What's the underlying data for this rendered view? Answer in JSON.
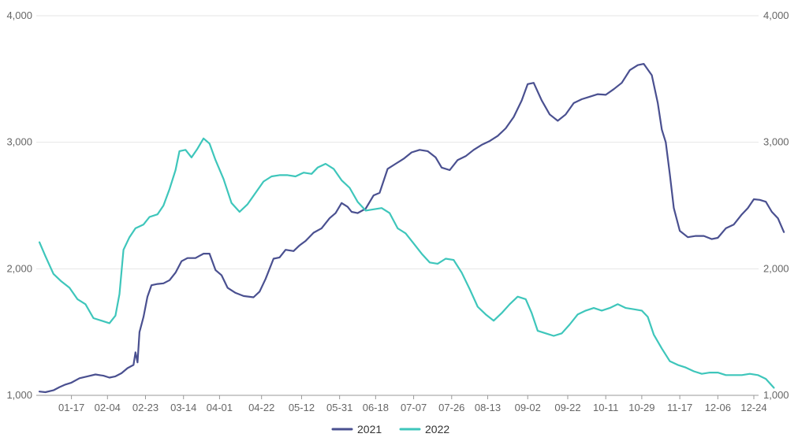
{
  "chart_data": {
    "type": "line",
    "title": "",
    "xlabel": "",
    "ylabel": "",
    "ylim": [
      1000,
      4000
    ],
    "y_ticks": [
      "1,000",
      "2,000",
      "3,000",
      "4,000"
    ],
    "y_tick_values": [
      1000,
      2000,
      3000,
      4000
    ],
    "x_ticks": [
      "01-17",
      "02-04",
      "02-23",
      "03-14",
      "04-01",
      "04-22",
      "05-12",
      "05-31",
      "06-18",
      "07-07",
      "07-26",
      "08-13",
      "09-02",
      "09-22",
      "10-11",
      "10-29",
      "11-17",
      "12-06",
      "12-24"
    ],
    "grid": "horizontal",
    "legend_position": "bottom",
    "series": [
      {
        "name": "2021",
        "color": "#4a5090",
        "points": [
          [
            "01-01",
            1030
          ],
          [
            "01-04",
            1025
          ],
          [
            "01-08",
            1040
          ],
          [
            "01-11",
            1065
          ],
          [
            "01-14",
            1085
          ],
          [
            "01-17",
            1100
          ],
          [
            "01-21",
            1135
          ],
          [
            "01-25",
            1150
          ],
          [
            "01-29",
            1165
          ],
          [
            "02-02",
            1155
          ],
          [
            "02-05",
            1140
          ],
          [
            "02-08",
            1150
          ],
          [
            "02-11",
            1175
          ],
          [
            "02-14",
            1215
          ],
          [
            "02-17",
            1240
          ],
          [
            "02-18",
            1340
          ],
          [
            "02-19",
            1260
          ],
          [
            "02-20",
            1500
          ],
          [
            "02-22",
            1620
          ],
          [
            "02-24",
            1780
          ],
          [
            "02-26",
            1870
          ],
          [
            "03-01",
            1880
          ],
          [
            "03-04",
            1885
          ],
          [
            "03-07",
            1910
          ],
          [
            "03-10",
            1970
          ],
          [
            "03-13",
            2060
          ],
          [
            "03-16",
            2085
          ],
          [
            "03-20",
            2085
          ],
          [
            "03-24",
            2120
          ],
          [
            "03-27",
            2120
          ],
          [
            "03-30",
            1990
          ],
          [
            "04-02",
            1950
          ],
          [
            "04-05",
            1850
          ],
          [
            "04-09",
            1810
          ],
          [
            "04-13",
            1785
          ],
          [
            "04-18",
            1775
          ],
          [
            "04-21",
            1820
          ],
          [
            "04-24",
            1920
          ],
          [
            "04-28",
            2080
          ],
          [
            "05-01",
            2090
          ],
          [
            "05-04",
            2150
          ],
          [
            "05-08",
            2140
          ],
          [
            "05-11",
            2185
          ],
          [
            "05-14",
            2220
          ],
          [
            "05-18",
            2285
          ],
          [
            "05-22",
            2320
          ],
          [
            "05-26",
            2400
          ],
          [
            "05-29",
            2440
          ],
          [
            "06-01",
            2520
          ],
          [
            "06-04",
            2490
          ],
          [
            "06-06",
            2450
          ],
          [
            "06-09",
            2440
          ],
          [
            "06-13",
            2475
          ],
          [
            "06-17",
            2580
          ],
          [
            "06-20",
            2600
          ],
          [
            "06-24",
            2790
          ],
          [
            "06-28",
            2830
          ],
          [
            "07-02",
            2870
          ],
          [
            "07-06",
            2920
          ],
          [
            "07-10",
            2940
          ],
          [
            "07-14",
            2930
          ],
          [
            "07-18",
            2880
          ],
          [
            "07-21",
            2800
          ],
          [
            "07-25",
            2780
          ],
          [
            "07-29",
            2860
          ],
          [
            "08-02",
            2890
          ],
          [
            "08-06",
            2940
          ],
          [
            "08-10",
            2980
          ],
          [
            "08-14",
            3010
          ],
          [
            "08-18",
            3050
          ],
          [
            "08-22",
            3110
          ],
          [
            "08-26",
            3200
          ],
          [
            "08-30",
            3330
          ],
          [
            "09-02",
            3460
          ],
          [
            "09-05",
            3470
          ],
          [
            "09-09",
            3330
          ],
          [
            "09-13",
            3220
          ],
          [
            "09-17",
            3170
          ],
          [
            "09-21",
            3220
          ],
          [
            "09-25",
            3310
          ],
          [
            "09-29",
            3340
          ],
          [
            "10-03",
            3360
          ],
          [
            "10-07",
            3380
          ],
          [
            "10-11",
            3375
          ],
          [
            "10-15",
            3420
          ],
          [
            "10-19",
            3470
          ],
          [
            "10-23",
            3570
          ],
          [
            "10-27",
            3610
          ],
          [
            "10-30",
            3620
          ],
          [
            "11-03",
            3530
          ],
          [
            "11-06",
            3310
          ],
          [
            "11-08",
            3100
          ],
          [
            "11-10",
            3000
          ],
          [
            "11-12",
            2750
          ],
          [
            "11-14",
            2480
          ],
          [
            "11-17",
            2300
          ],
          [
            "11-21",
            2250
          ],
          [
            "11-25",
            2260
          ],
          [
            "11-29",
            2260
          ],
          [
            "12-03",
            2235
          ],
          [
            "12-06",
            2245
          ],
          [
            "12-10",
            2320
          ],
          [
            "12-14",
            2350
          ],
          [
            "12-18",
            2430
          ],
          [
            "12-21",
            2480
          ],
          [
            "12-24",
            2550
          ],
          [
            "12-27",
            2545
          ],
          [
            "12-30",
            2530
          ],
          [
            "01-02",
            2450
          ],
          [
            "01-05",
            2400
          ],
          [
            "01-08",
            2290
          ]
        ]
      },
      {
        "name": "2022",
        "color": "#3ec6bb",
        "points": [
          [
            "01-01",
            2210
          ],
          [
            "01-04",
            2100
          ],
          [
            "01-08",
            1960
          ],
          [
            "01-12",
            1900
          ],
          [
            "01-16",
            1850
          ],
          [
            "01-20",
            1760
          ],
          [
            "01-24",
            1720
          ],
          [
            "01-28",
            1610
          ],
          [
            "02-01",
            1590
          ],
          [
            "02-05",
            1570
          ],
          [
            "02-08",
            1630
          ],
          [
            "02-10",
            1800
          ],
          [
            "02-12",
            2150
          ],
          [
            "02-15",
            2250
          ],
          [
            "02-18",
            2320
          ],
          [
            "02-22",
            2350
          ],
          [
            "02-25",
            2410
          ],
          [
            "03-01",
            2430
          ],
          [
            "03-04",
            2500
          ],
          [
            "03-07",
            2630
          ],
          [
            "03-10",
            2780
          ],
          [
            "03-12",
            2930
          ],
          [
            "03-15",
            2940
          ],
          [
            "03-18",
            2880
          ],
          [
            "03-21",
            2950
          ],
          [
            "03-24",
            3030
          ],
          [
            "03-27",
            2990
          ],
          [
            "03-30",
            2860
          ],
          [
            "04-03",
            2710
          ],
          [
            "04-07",
            2520
          ],
          [
            "04-11",
            2450
          ],
          [
            "04-15",
            2510
          ],
          [
            "04-19",
            2600
          ],
          [
            "04-23",
            2690
          ],
          [
            "04-27",
            2730
          ],
          [
            "05-01",
            2740
          ],
          [
            "05-05",
            2740
          ],
          [
            "05-09",
            2730
          ],
          [
            "05-13",
            2760
          ],
          [
            "05-17",
            2750
          ],
          [
            "05-20",
            2800
          ],
          [
            "05-24",
            2830
          ],
          [
            "05-28",
            2790
          ],
          [
            "06-01",
            2700
          ],
          [
            "06-05",
            2640
          ],
          [
            "06-09",
            2530
          ],
          [
            "06-13",
            2460
          ],
          [
            "06-17",
            2470
          ],
          [
            "06-21",
            2480
          ],
          [
            "06-25",
            2440
          ],
          [
            "06-29",
            2320
          ],
          [
            "07-03",
            2280
          ],
          [
            "07-07",
            2200
          ],
          [
            "07-11",
            2120
          ],
          [
            "07-15",
            2050
          ],
          [
            "07-19",
            2040
          ],
          [
            "07-23",
            2080
          ],
          [
            "07-27",
            2070
          ],
          [
            "07-31",
            1970
          ],
          [
            "08-04",
            1840
          ],
          [
            "08-08",
            1700
          ],
          [
            "08-12",
            1640
          ],
          [
            "08-16",
            1590
          ],
          [
            "08-20",
            1650
          ],
          [
            "08-24",
            1720
          ],
          [
            "08-28",
            1780
          ],
          [
            "09-01",
            1760
          ],
          [
            "09-04",
            1650
          ],
          [
            "09-07",
            1510
          ],
          [
            "09-11",
            1490
          ],
          [
            "09-15",
            1470
          ],
          [
            "09-19",
            1490
          ],
          [
            "09-23",
            1560
          ],
          [
            "09-27",
            1640
          ],
          [
            "10-01",
            1670
          ],
          [
            "10-05",
            1690
          ],
          [
            "10-09",
            1670
          ],
          [
            "10-13",
            1690
          ],
          [
            "10-17",
            1720
          ],
          [
            "10-21",
            1690
          ],
          [
            "10-25",
            1680
          ],
          [
            "10-29",
            1670
          ],
          [
            "11-01",
            1620
          ],
          [
            "11-04",
            1480
          ],
          [
            "11-08",
            1370
          ],
          [
            "11-12",
            1270
          ],
          [
            "11-16",
            1240
          ],
          [
            "11-20",
            1220
          ],
          [
            "11-24",
            1190
          ],
          [
            "11-28",
            1170
          ],
          [
            "12-02",
            1180
          ],
          [
            "12-06",
            1180
          ],
          [
            "12-10",
            1160
          ],
          [
            "12-14",
            1160
          ],
          [
            "12-18",
            1160
          ],
          [
            "12-22",
            1170
          ],
          [
            "12-26",
            1160
          ],
          [
            "12-30",
            1130
          ],
          [
            "01-03",
            1060
          ]
        ]
      }
    ]
  }
}
